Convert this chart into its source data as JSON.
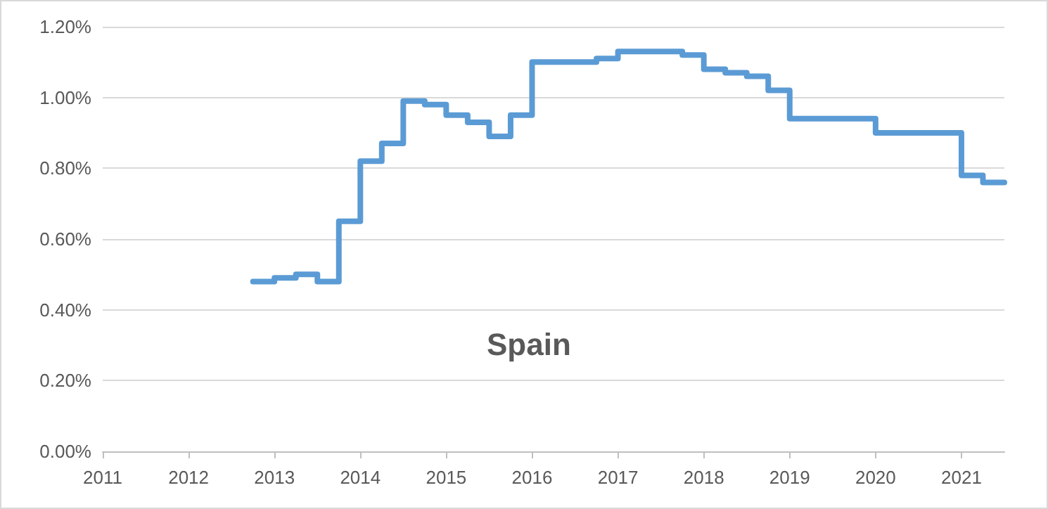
{
  "chart_data": {
    "type": "step",
    "title": "Spain",
    "color": "#5b9bd5",
    "line_style": "solid",
    "marker": "none",
    "grid": "y",
    "x": [
      2012.75,
      2013,
      2013.25,
      2013.5,
      2013.75,
      2014,
      2014.25,
      2014.5,
      2014.75,
      2015,
      2015.25,
      2015.5,
      2015.75,
      2016,
      2016.25,
      2016.5,
      2016.75,
      2017,
      2017.25,
      2017.5,
      2017.75,
      2018,
      2018.25,
      2018.5,
      2018.75,
      2019,
      2019.25,
      2019.5,
      2019.75,
      2020,
      2020.25,
      2020.5,
      2020.75,
      2021,
      2021.25,
      2021.5
    ],
    "values": [
      0.48,
      0.49,
      0.5,
      0.48,
      0.65,
      0.82,
      0.87,
      0.99,
      0.98,
      0.95,
      0.93,
      0.89,
      0.95,
      1.1,
      1.1,
      1.1,
      1.11,
      1.13,
      1.13,
      1.13,
      1.12,
      1.08,
      1.07,
      1.06,
      1.02,
      0.94,
      0.94,
      0.94,
      0.94,
      0.9,
      0.9,
      0.9,
      0.9,
      0.78,
      0.76,
      0.76
    ],
    "xlim": [
      2011,
      2021.5
    ],
    "xticks": [
      2011,
      2012,
      2013,
      2014,
      2015,
      2016,
      2017,
      2018,
      2019,
      2020,
      2021
    ],
    "ylim": [
      0,
      1.2
    ],
    "yticks": [
      {
        "value": 0,
        "label": "0.00%"
      },
      {
        "value": 0.2,
        "label": "0.20%"
      },
      {
        "value": 0.4,
        "label": "0.40%"
      },
      {
        "value": 0.6,
        "label": "0.60%"
      },
      {
        "value": 0.8,
        "label": "0.80%"
      },
      {
        "value": 1.0,
        "label": "1.00%"
      },
      {
        "value": 1.2,
        "label": "1.20%"
      }
    ]
  }
}
